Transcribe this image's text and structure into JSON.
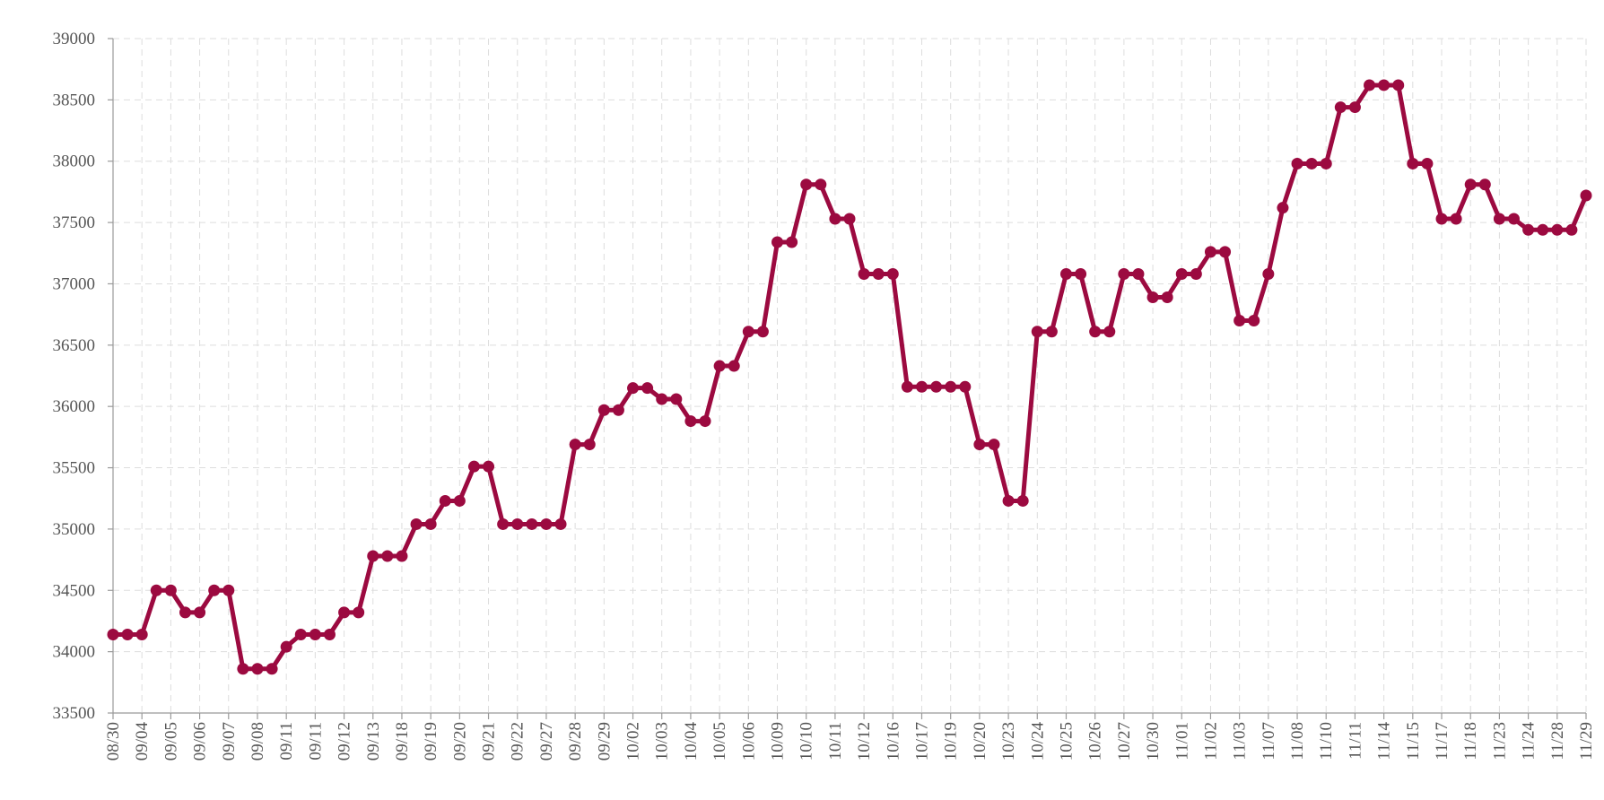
{
  "chart_data": {
    "type": "line",
    "title": "",
    "xlabel": "",
    "ylabel": "",
    "ylim": [
      33500,
      39000
    ],
    "yticks": [
      33500,
      34000,
      34500,
      35000,
      35500,
      36000,
      36500,
      37000,
      37500,
      38000,
      38500,
      39000
    ],
    "x_tick_labels": [
      "08/30",
      "09/04",
      "09/05",
      "09/06",
      "09/07",
      "09/08",
      "09/11",
      "09/11",
      "09/12",
      "09/13",
      "09/18",
      "09/19",
      "09/20",
      "09/21",
      "09/22",
      "09/27",
      "09/28",
      "09/29",
      "10/02",
      "10/03",
      "10/04",
      "10/05",
      "10/06",
      "10/09",
      "10/10",
      "10/11",
      "10/12",
      "10/16",
      "10/17",
      "10/19",
      "10/20",
      "10/23",
      "10/24",
      "10/25",
      "10/26",
      "10/27",
      "10/30",
      "11/01",
      "11/02",
      "11/03",
      "11/07",
      "11/08",
      "11/10",
      "11/11",
      "11/14",
      "11/15",
      "11/17",
      "11/18",
      "11/23",
      "11/24",
      "11/28",
      "11/29"
    ],
    "grid": true,
    "color": "#9c0a40",
    "series": [
      {
        "values": [
          34140,
          34140,
          34140,
          34500,
          34500,
          34320,
          34320,
          34500,
          34500,
          33860,
          33860,
          33860,
          34040,
          34140,
          34140,
          34140,
          34320,
          34320,
          34780,
          34780,
          34780,
          35040,
          35040,
          35230,
          35230,
          35510,
          35510,
          35040,
          35040,
          35040,
          35040,
          35040,
          35690,
          35690,
          35970,
          35970,
          36150,
          36150,
          36060,
          36060,
          35880,
          35880,
          36330,
          36330,
          36610,
          36610,
          37340,
          37340,
          37810,
          37810,
          37530,
          37530,
          37080,
          37080,
          37080,
          36160,
          36160,
          36160,
          36160,
          36160,
          35690,
          35690,
          35230,
          35230,
          36610,
          36610,
          37080,
          37080,
          36610,
          36610,
          37080,
          37080,
          36890,
          36890,
          37080,
          37080,
          37260,
          37260,
          36700,
          36700,
          37080,
          37620,
          37980,
          37980,
          37980,
          38440,
          38440,
          38620,
          38620,
          38620,
          37980,
          37980,
          37530,
          37530,
          37810,
          37810,
          37530,
          37530,
          37440,
          37440,
          37440,
          37440,
          37720
        ]
      }
    ]
  }
}
